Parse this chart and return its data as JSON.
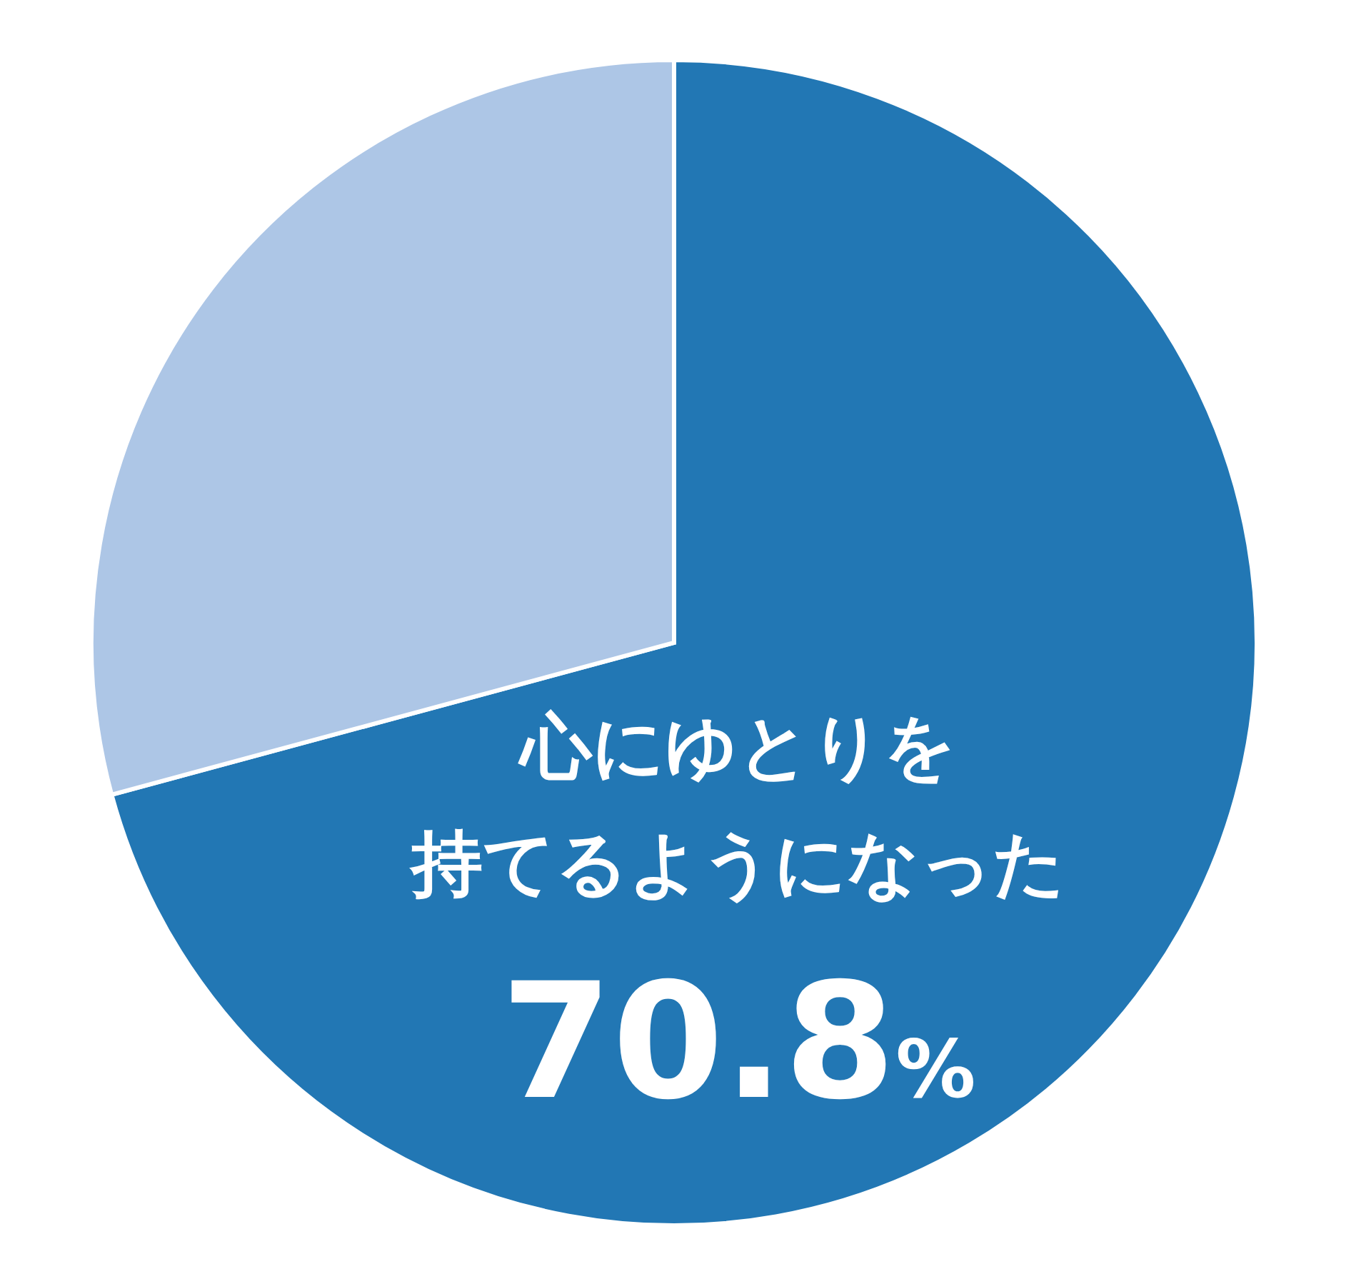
{
  "chart_data": {
    "type": "pie",
    "categories": [
      "心にゆとりを持てるようになった",
      null
    ],
    "values": [
      70.8,
      29.2
    ],
    "colors": [
      "#2277b4",
      "#adc6e6"
    ],
    "value_labels": [
      "70.8%",
      null
    ]
  }
}
